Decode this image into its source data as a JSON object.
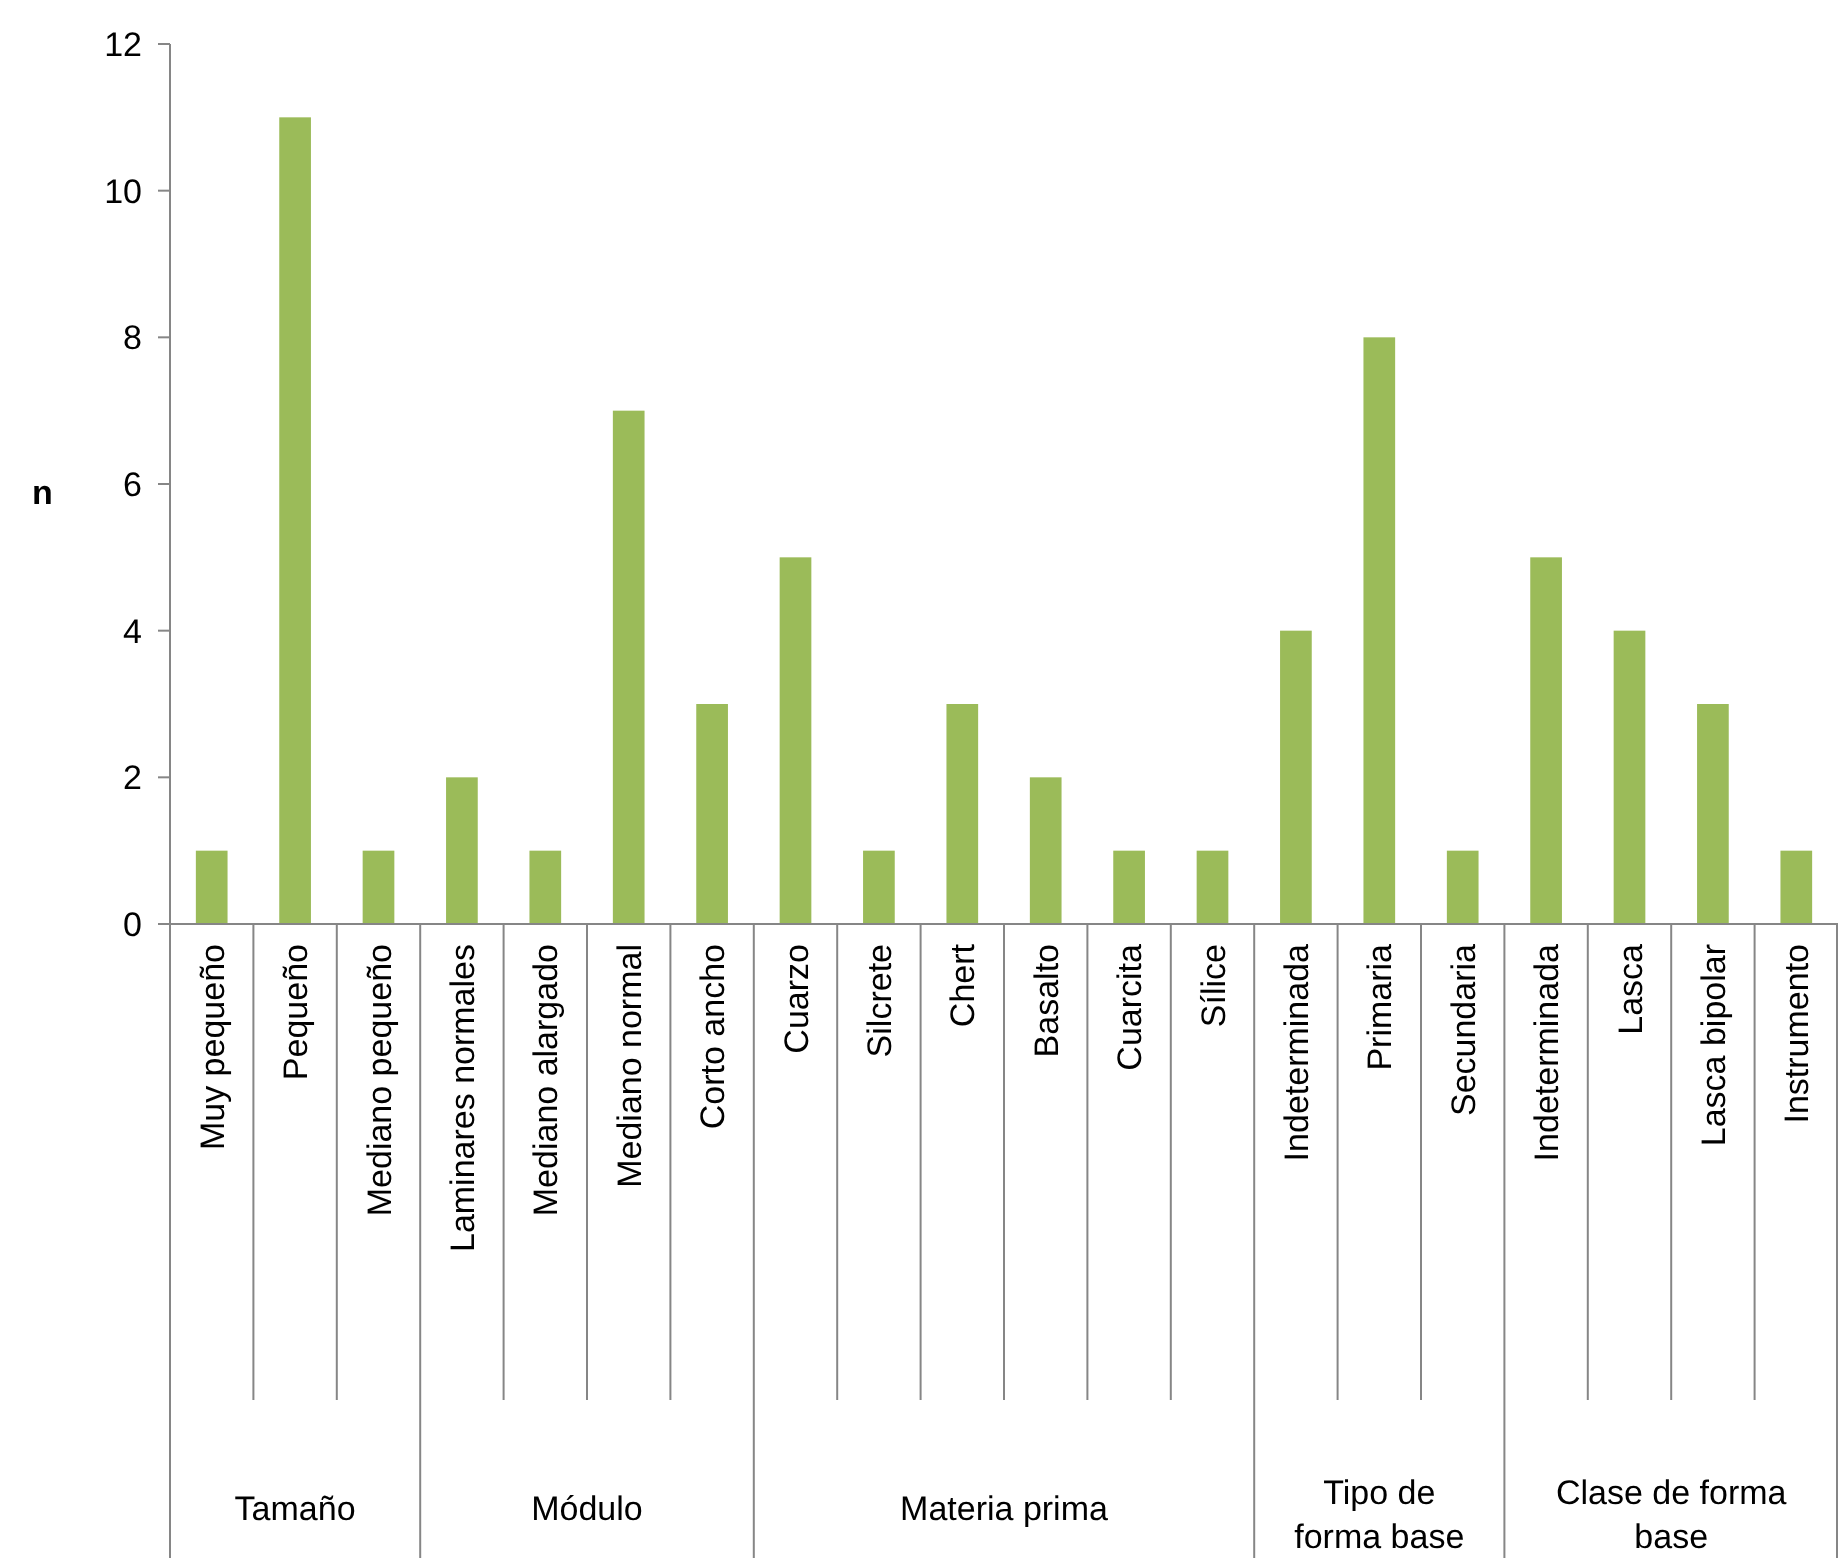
{
  "chart_data": {
    "type": "bar",
    "ylabel": "n",
    "categories": [
      "Muy pequeño",
      "Pequeño",
      "Mediano pequeño",
      "Laminares normales",
      "Mediano alargado",
      "Mediano normal",
      "Corto ancho",
      "Cuarzo",
      "Silcrete",
      "Chert",
      "Basalto",
      "Cuarcita",
      "Sílice",
      "Indeterminada",
      "Primaria",
      "Secundaria",
      "Indeterminada",
      "Lasca",
      "Lasca bipolar",
      "Instrumento"
    ],
    "values": [
      1,
      11,
      1,
      2,
      1,
      7,
      3,
      5,
      1,
      3,
      2,
      1,
      1,
      4,
      8,
      1,
      5,
      4,
      3,
      1
    ],
    "color": "#9bbb59",
    "ylim": [
      0,
      12
    ],
    "yticks": [
      0,
      2,
      4,
      6,
      8,
      10,
      12
    ],
    "grid": false,
    "annotations": [
      "Tamaño",
      "Módulo",
      "Materia prima",
      "Tipo de forma base",
      "Clase de forma base"
    ]
  }
}
